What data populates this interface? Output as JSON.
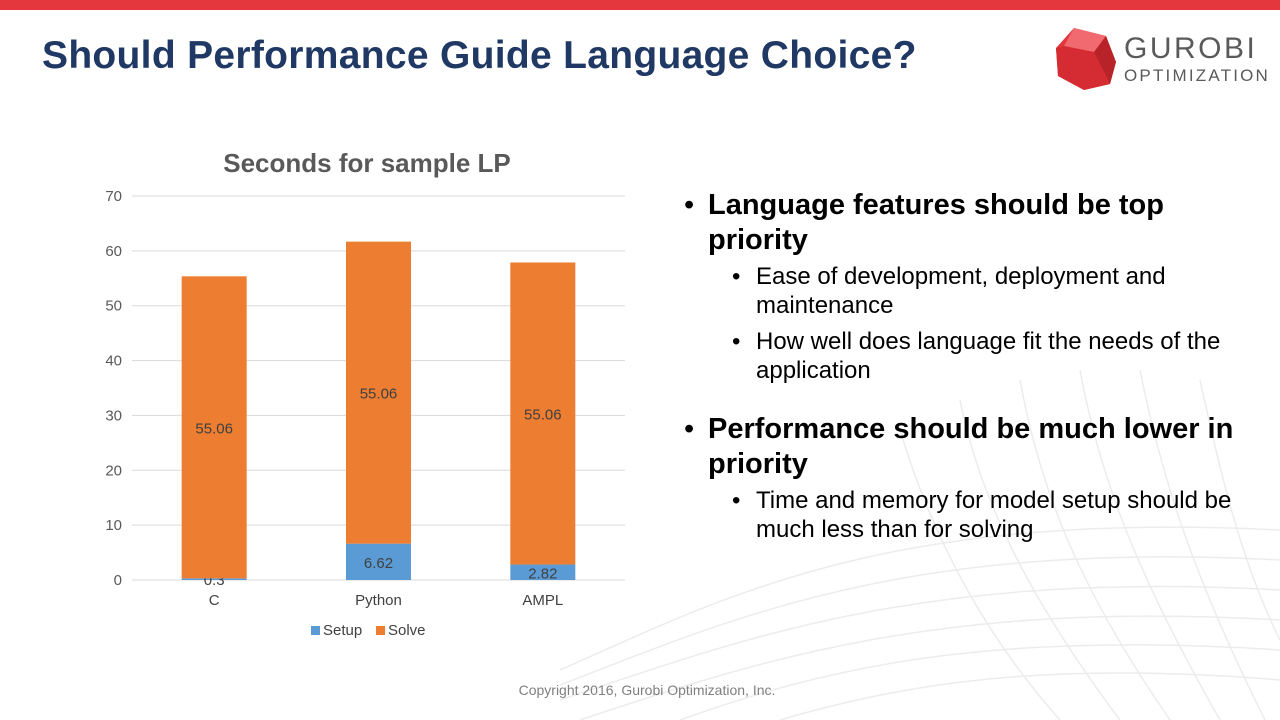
{
  "slide": {
    "title": "Should Performance Guide Language Choice?",
    "copyright": "Copyright 2016, Gurobi Optimization, Inc."
  },
  "logo": {
    "word": "GUROBI",
    "sub": "OPTIMIZATION",
    "icon": "red-cube-logo-icon",
    "color": "#e3363d"
  },
  "colors": {
    "accent_bar": "#e3363d",
    "title": "#1f3864",
    "setup": "#5b9bd5",
    "solve": "#ed7d31"
  },
  "bullets": [
    {
      "text": "Language features should be top priority",
      "subs": [
        "Ease of development, deployment and maintenance",
        "How well does language fit the needs of the application"
      ]
    },
    {
      "text": "Performance should be much lower in priority",
      "subs": [
        "Time and memory for model setup should be much less than for solving"
      ]
    }
  ],
  "chart_data": {
    "type": "bar",
    "stacked": true,
    "title": "Seconds for sample LP",
    "categories": [
      "C",
      "Python",
      "AMPL"
    ],
    "series": [
      {
        "name": "Setup",
        "values": [
          0.3,
          6.62,
          2.82
        ],
        "color": "#5b9bd5"
      },
      {
        "name": "Solve",
        "values": [
          55.06,
          55.06,
          55.06
        ],
        "color": "#ed7d31"
      }
    ],
    "ylim": [
      0,
      70
    ],
    "yticks": [
      0,
      10,
      20,
      30,
      40,
      50,
      60,
      70
    ],
    "grid": true,
    "legend": "bottom"
  }
}
